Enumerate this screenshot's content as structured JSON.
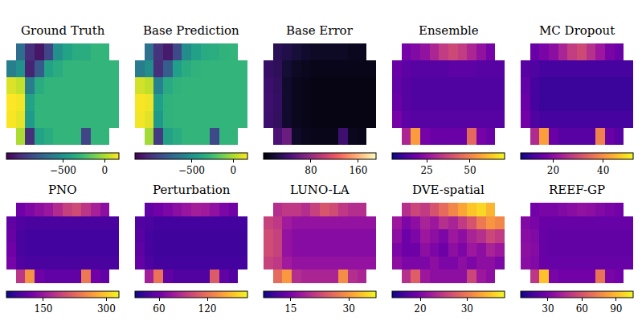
{
  "chart_data": [
    {
      "type": "heatmap",
      "title": "Ground Truth",
      "color": "viridis",
      "tick_labels": false,
      "colorbar_range": [
        -1180,
        170
      ],
      "colorbar_ticks": [
        {
          "value": -500,
          "label": "−500"
        },
        0
      ],
      "cells": [
        [
          null,
          -700,
          -1000,
          -1100,
          -900,
          -500,
          -400,
          -350,
          -350,
          -300,
          -300,
          null
        ],
        [
          -600,
          -500,
          -1050,
          -800,
          -400,
          -350,
          -300,
          -300,
          -300,
          -300,
          -300,
          -300
        ],
        [
          100,
          50,
          -600,
          -350,
          -300,
          -300,
          -300,
          -300,
          -300,
          -300,
          -300,
          -300
        ],
        [
          170,
          150,
          -400,
          -300,
          -300,
          -300,
          -300,
          -300,
          -300,
          -300,
          -300,
          -300
        ],
        [
          160,
          120,
          -450,
          -300,
          -300,
          -300,
          -300,
          -300,
          -300,
          -300,
          -300,
          -300
        ],
        [
          null,
          0,
          -1000,
          -400,
          -350,
          -300,
          -300,
          -300,
          -900,
          -300,
          -300,
          null
        ]
      ]
    },
    {
      "type": "heatmap",
      "title": "Base Prediction",
      "color": "viridis",
      "tick_labels": false,
      "colorbar_range": [
        -1180,
        170
      ],
      "colorbar_ticks": [
        {
          "value": -500,
          "label": "−500"
        },
        0
      ],
      "cells": [
        [
          null,
          -680,
          -980,
          -1080,
          -880,
          -520,
          -410,
          -360,
          -340,
          -310,
          -300,
          null
        ],
        [
          -620,
          -520,
          -1000,
          -780,
          -420,
          -350,
          -310,
          -300,
          -300,
          -300,
          -300,
          -300
        ],
        [
          80,
          40,
          -580,
          -360,
          -310,
          -300,
          -300,
          -300,
          -300,
          -300,
          -300,
          -300
        ],
        [
          160,
          140,
          -420,
          -310,
          -300,
          -300,
          -300,
          -300,
          -300,
          -300,
          -300,
          -300
        ],
        [
          150,
          110,
          -460,
          -310,
          -300,
          -300,
          -300,
          -300,
          -300,
          -300,
          -300,
          -300
        ],
        [
          null,
          -20,
          -950,
          -410,
          -350,
          -300,
          -300,
          -300,
          -880,
          -300,
          -300,
          null
        ]
      ]
    },
    {
      "type": "heatmap",
      "title": "Base Error",
      "color": "magma",
      "tick_labels": false,
      "colorbar_range": [
        0,
        190
      ],
      "colorbar_ticks": [
        80,
        160
      ],
      "cells": [
        [
          null,
          30,
          25,
          20,
          15,
          12,
          12,
          12,
          12,
          10,
          10,
          null
        ],
        [
          35,
          32,
          18,
          12,
          10,
          8,
          8,
          8,
          8,
          8,
          8,
          8
        ],
        [
          38,
          34,
          15,
          10,
          8,
          6,
          6,
          6,
          6,
          6,
          6,
          6
        ],
        [
          40,
          35,
          15,
          10,
          8,
          6,
          6,
          6,
          6,
          6,
          6,
          6
        ],
        [
          38,
          34,
          16,
          10,
          8,
          6,
          6,
          6,
          6,
          6,
          6,
          6
        ],
        [
          null,
          45,
          60,
          14,
          10,
          8,
          8,
          8,
          40,
          10,
          8,
          null
        ]
      ]
    },
    {
      "type": "heatmap",
      "title": "Ensemble",
      "color": "plasma",
      "tick_labels": false,
      "colorbar_range": [
        5,
        70
      ],
      "colorbar_ticks": [
        25,
        50
      ],
      "cells": [
        [
          null,
          20,
          22,
          25,
          30,
          35,
          38,
          35,
          30,
          25,
          20,
          null
        ],
        [
          18,
          16,
          15,
          15,
          15,
          15,
          16,
          16,
          16,
          15,
          15,
          15
        ],
        [
          17,
          15,
          14,
          14,
          14,
          14,
          14,
          14,
          14,
          14,
          14,
          14
        ],
        [
          18,
          15,
          14,
          14,
          14,
          14,
          14,
          14,
          14,
          14,
          14,
          14
        ],
        [
          20,
          16,
          15,
          15,
          15,
          15,
          15,
          15,
          15,
          15,
          15,
          15
        ],
        [
          null,
          30,
          55,
          20,
          18,
          18,
          18,
          18,
          45,
          20,
          18,
          null
        ]
      ]
    },
    {
      "type": "heatmap",
      "title": "MC Dropout",
      "color": "plasma",
      "tick_labels": false,
      "colorbar_range": [
        7,
        52
      ],
      "colorbar_ticks": [
        20,
        40
      ],
      "cells": [
        [
          null,
          16,
          18,
          20,
          24,
          28,
          30,
          26,
          22,
          18,
          16,
          null
        ],
        [
          14,
          13,
          12,
          12,
          12,
          12,
          12,
          12,
          12,
          12,
          12,
          12
        ],
        [
          15,
          12,
          11,
          11,
          11,
          11,
          11,
          11,
          11,
          11,
          11,
          11
        ],
        [
          16,
          12,
          11,
          11,
          11,
          11,
          11,
          11,
          11,
          11,
          11,
          11
        ],
        [
          17,
          13,
          12,
          12,
          12,
          12,
          12,
          12,
          12,
          12,
          12,
          12
        ],
        [
          null,
          25,
          42,
          16,
          14,
          14,
          14,
          14,
          38,
          16,
          14,
          null
        ]
      ]
    },
    {
      "type": "heatmap",
      "title": "PNO",
      "color": "plasma",
      "tick_labels": false,
      "colorbar_range": [
        62,
        330
      ],
      "colorbar_ticks": [
        150,
        300
      ],
      "cells": [
        [
          null,
          120,
          130,
          140,
          150,
          170,
          190,
          200,
          180,
          160,
          140,
          null
        ],
        [
          110,
          100,
          95,
          95,
          95,
          95,
          95,
          95,
          95,
          95,
          95,
          95
        ],
        [
          115,
          95,
          90,
          90,
          90,
          90,
          90,
          90,
          90,
          90,
          90,
          90
        ],
        [
          120,
          95,
          90,
          90,
          90,
          90,
          90,
          90,
          90,
          90,
          90,
          90
        ],
        [
          125,
          100,
          95,
          95,
          95,
          95,
          95,
          95,
          95,
          95,
          95,
          95
        ],
        [
          null,
          180,
          260,
          120,
          110,
          110,
          110,
          110,
          240,
          120,
          110,
          null
        ]
      ]
    },
    {
      "type": "heatmap",
      "title": "Perturbation",
      "color": "plasma",
      "tick_labels": false,
      "colorbar_range": [
        30,
        170
      ],
      "colorbar_ticks": [
        60,
        120
      ],
      "cells": [
        [
          null,
          55,
          60,
          65,
          70,
          75,
          80,
          78,
          72,
          65,
          60,
          null
        ],
        [
          50,
          48,
          45,
          45,
          45,
          45,
          45,
          45,
          45,
          45,
          45,
          45
        ],
        [
          52,
          46,
          44,
          44,
          44,
          44,
          44,
          44,
          44,
          44,
          44,
          44
        ],
        [
          54,
          46,
          44,
          44,
          44,
          44,
          44,
          44,
          44,
          44,
          44,
          44
        ],
        [
          56,
          48,
          45,
          45,
          45,
          45,
          45,
          45,
          45,
          45,
          45,
          45
        ],
        [
          null,
          80,
          120,
          55,
          50,
          50,
          50,
          50,
          110,
          55,
          50,
          null
        ]
      ]
    },
    {
      "type": "heatmap",
      "title": "LUNO-LA",
      "color": "plasma",
      "tick_labels": false,
      "colorbar_range": [
        8,
        37
      ],
      "colorbar_ticks": [
        15,
        30
      ],
      "cells": [
        [
          null,
          20,
          21,
          21,
          20,
          22,
          24,
          23,
          21,
          20,
          20,
          null
        ],
        [
          22,
          21,
          18,
          17,
          17,
          17,
          17,
          17,
          17,
          17,
          17,
          17
        ],
        [
          23,
          22,
          17,
          16,
          16,
          16,
          16,
          16,
          16,
          16,
          16,
          16
        ],
        [
          23,
          22,
          17,
          16,
          16,
          16,
          16,
          16,
          16,
          16,
          16,
          16
        ],
        [
          22,
          21,
          18,
          17,
          17,
          17,
          17,
          17,
          17,
          17,
          17,
          17
        ],
        [
          null,
          26,
          30,
          20,
          19,
          19,
          19,
          19,
          29,
          20,
          19,
          null
        ]
      ]
    },
    {
      "type": "heatmap",
      "title": "DVE-spatial",
      "color": "plasma",
      "tick_labels": false,
      "colorbar_range": [
        14,
        38
      ],
      "colorbar_ticks": [
        20,
        30
      ],
      "cells": [
        [
          null,
          24,
          26,
          25,
          27,
          29,
          31,
          33,
          35,
          36,
          34,
          null
        ],
        [
          22,
          20,
          21,
          23,
          22,
          24,
          23,
          25,
          27,
          30,
          32,
          31
        ],
        [
          21,
          19,
          20,
          22,
          21,
          20,
          22,
          21,
          23,
          24,
          26,
          25
        ],
        [
          20,
          19,
          19,
          21,
          20,
          19,
          21,
          20,
          22,
          21,
          23,
          22
        ],
        [
          21,
          20,
          20,
          20,
          21,
          20,
          20,
          21,
          20,
          21,
          21,
          20
        ],
        [
          null,
          24,
          28,
          22,
          21,
          21,
          21,
          21,
          26,
          22,
          21,
          null
        ]
      ]
    },
    {
      "type": "heatmap",
      "title": "REEF-GP",
      "color": "plasma",
      "tick_labels": false,
      "colorbar_range": [
        6,
        105
      ],
      "colorbar_ticks": [
        30,
        60,
        90
      ],
      "cells": [
        [
          null,
          28,
          30,
          30,
          32,
          34,
          36,
          35,
          32,
          30,
          28,
          null
        ],
        [
          32,
          30,
          26,
          25,
          25,
          25,
          25,
          25,
          25,
          25,
          25,
          25
        ],
        [
          34,
          32,
          25,
          24,
          24,
          24,
          24,
          24,
          24,
          24,
          24,
          24
        ],
        [
          35,
          33,
          25,
          24,
          24,
          24,
          24,
          24,
          24,
          24,
          24,
          24
        ],
        [
          34,
          32,
          26,
          25,
          25,
          25,
          25,
          25,
          25,
          25,
          25,
          25
        ],
        [
          null,
          50,
          92,
          30,
          28,
          28,
          28,
          28,
          70,
          30,
          28,
          null
        ]
      ]
    }
  ]
}
